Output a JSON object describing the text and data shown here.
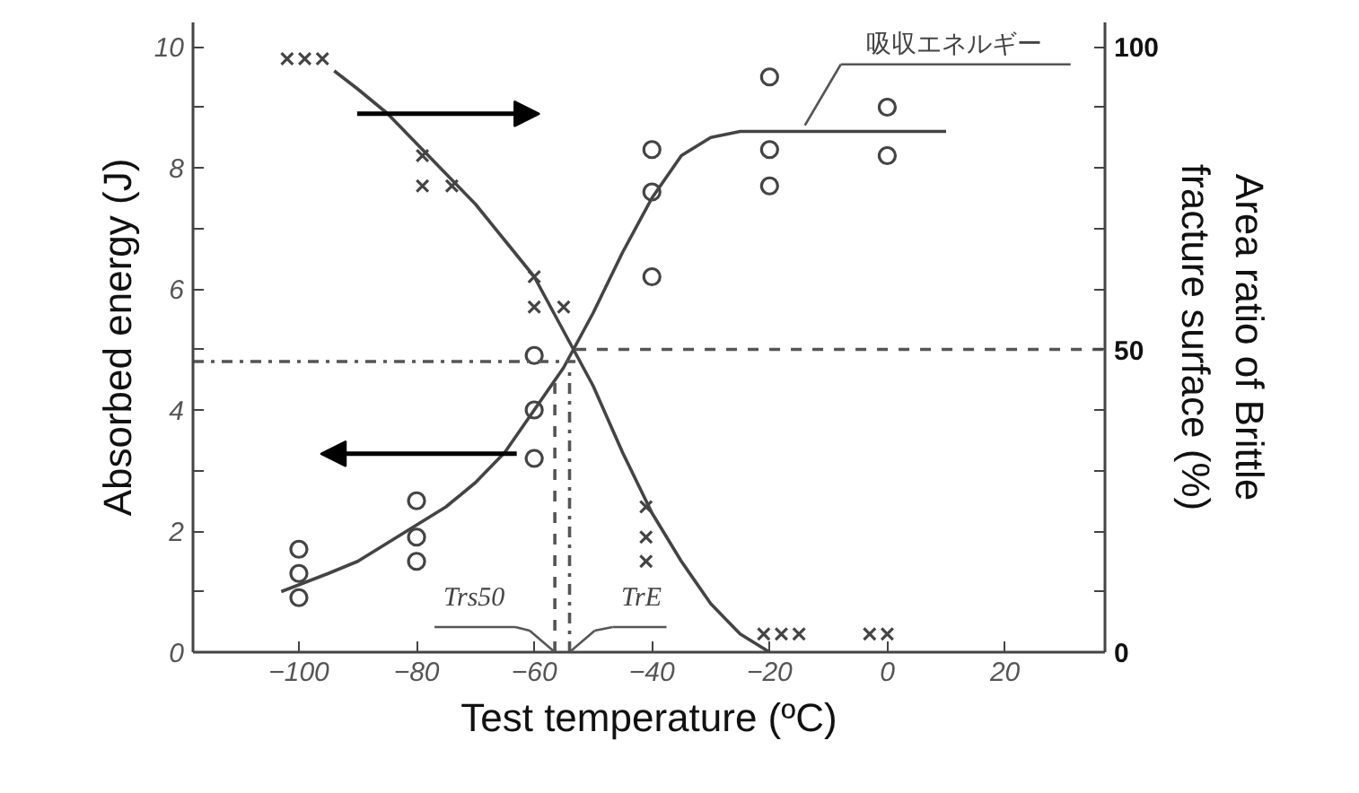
{
  "chart_data": {
    "type": "scatter",
    "xlabel": "Test temperature (ºC)",
    "ylabel": "Absorbed energy (J)",
    "y2label": "Area ratio of Brittle\nfracture surface (%)",
    "xlim": [
      -118,
      37
    ],
    "ylim": [
      0,
      10.4
    ],
    "y2lim": [
      0,
      104
    ],
    "xticks": [
      -100,
      -80,
      -60,
      -40,
      -20,
      0,
      20
    ],
    "yticks": [
      0,
      {
        "value": 1,
        "label": null
      },
      2,
      {
        "value": 3,
        "label": null
      },
      4,
      {
        "value": 5,
        "label": null
      },
      6,
      {
        "value": 7,
        "label": null
      },
      8,
      {
        "value": 9,
        "label": null
      },
      10
    ],
    "y2ticks": [
      0,
      {
        "value": 10,
        "label": null
      },
      {
        "value": 20,
        "label": null
      },
      {
        "value": 30,
        "label": null
      },
      {
        "value": 40,
        "label": null
      },
      50,
      {
        "value": 60,
        "label": null
      },
      {
        "value": 70,
        "label": null
      },
      {
        "value": 80,
        "label": null
      },
      {
        "value": 90,
        "label": null
      },
      100
    ],
    "grid": false,
    "series": [
      {
        "marker": "circle",
        "color": "#444444",
        "x": [
          -100,
          -100,
          -100,
          -80,
          -80,
          -80,
          -60,
          -60,
          -60,
          -40,
          -40,
          -40,
          -20,
          -20,
          -20,
          0,
          0
        ],
        "values": [
          1.7,
          1.3,
          0.9,
          2.5,
          1.9,
          1.5,
          4.9,
          4.0,
          3.2,
          8.3,
          7.6,
          6.2,
          9.5,
          8.3,
          7.7,
          9.0,
          8.2
        ]
      },
      {
        "marker": "cross",
        "axis": "y2",
        "color": "#444444",
        "x": [
          -102,
          -99,
          -96,
          -79,
          -79,
          -74,
          -60,
          -60,
          -55,
          -41,
          -41,
          -41,
          -21,
          -18,
          -15,
          -3,
          0
        ],
        "values": [
          98,
          98,
          98,
          82,
          77,
          77,
          62,
          57,
          57,
          24,
          19,
          15,
          3,
          3,
          3,
          3,
          3
        ]
      },
      {
        "type": "line",
        "line_style": "solid",
        "color": "#444444",
        "x": [
          -103,
          -95,
          -90,
          -85,
          -80,
          -75,
          -70,
          -65,
          -60,
          -55,
          -50,
          -45,
          -40,
          -35,
          -30,
          -25,
          -20,
          -10,
          10
        ],
        "values": [
          1.0,
          1.3,
          1.5,
          1.8,
          2.1,
          2.4,
          2.8,
          3.3,
          4.0,
          4.7,
          5.6,
          6.6,
          7.5,
          8.2,
          8.5,
          8.6,
          8.6,
          8.6,
          8.6
        ]
      },
      {
        "type": "line",
        "line_style": "solid",
        "axis": "y2",
        "color": "#444444",
        "x": [
          -94,
          -90,
          -85,
          -79,
          -75,
          -70,
          -65,
          -60,
          -55,
          -50,
          -45,
          -40,
          -35,
          -30,
          -25,
          -20
        ],
        "values": [
          96,
          93,
          89,
          83,
          79,
          74,
          68,
          62,
          53,
          44,
          33,
          23,
          15,
          8,
          3,
          0
        ]
      },
      {
        "type": "line",
        "line_style": "dashdot",
        "color": "#555555",
        "x": [
          -118,
          -53
        ],
        "values": [
          4.8,
          4.8
        ]
      },
      {
        "type": "line",
        "line_style": "dashed",
        "axis": "y2",
        "color": "#555555",
        "x": [
          -53,
          37
        ],
        "values": [
          50,
          50
        ]
      },
      {
        "type": "line",
        "line_style": "dashed",
        "color": "#555555",
        "x": [
          -56.5,
          -56.5
        ],
        "values": [
          0,
          4.6
        ]
      },
      {
        "type": "line",
        "line_style": "dashdot",
        "color": "#555555",
        "x": [
          -54,
          -54
        ],
        "values": [
          0,
          4.7
        ]
      }
    ],
    "annotations": [
      {
        "text": "Trs50",
        "x": -56.5,
        "y": 0
      },
      {
        "text": "TrE",
        "x": -54,
        "y": 0
      },
      {
        "text": "吸収エネルギー",
        "x": -14,
        "y": 8.7
      }
    ]
  }
}
